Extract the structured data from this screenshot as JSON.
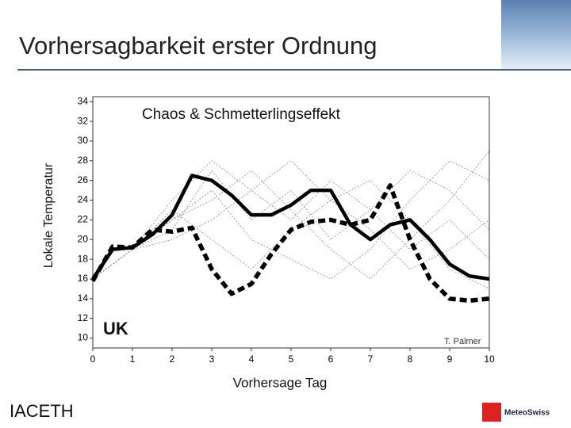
{
  "header": {
    "title": "Vorhersagbarkeit erster Ordnung"
  },
  "chart_data": {
    "type": "line",
    "title": "Chaos & Schmetterlingseffekt",
    "ylabel": "Lokale Temperatur",
    "xlabel": "Vorhersage Tag",
    "annotations": [
      "UK",
      "T. Palmer"
    ],
    "xlim": [
      0,
      10
    ],
    "xticks": [
      0,
      1,
      2,
      3,
      4,
      5,
      6,
      7,
      8,
      9,
      10
    ],
    "ylim": [
      9,
      34.5
    ],
    "yticks": [
      10,
      12,
      14,
      16,
      18,
      20,
      22,
      24,
      26,
      28,
      30,
      32,
      34
    ],
    "series": [
      {
        "color": "#888888",
        "style": "dotted",
        "x": [
          0,
          1,
          2,
          3,
          4,
          5,
          6,
          7,
          8,
          9,
          10
        ],
        "values": [
          16,
          19,
          24,
          28,
          25,
          22,
          26,
          23,
          27,
          25,
          21
        ]
      },
      {
        "color": "#888888",
        "style": "dotted",
        "x": [
          0,
          1,
          2,
          3,
          4,
          5,
          6,
          7,
          8,
          9,
          10
        ],
        "values": [
          16,
          19,
          22,
          25,
          20,
          18,
          16,
          19,
          24,
          28,
          26
        ]
      },
      {
        "color": "#888888",
        "style": "dotted",
        "x": [
          0,
          1,
          2,
          3,
          4,
          5,
          6,
          7,
          8,
          9,
          10
        ],
        "values": [
          16,
          19,
          21,
          27,
          22,
          25,
          20,
          23,
          19,
          22,
          18
        ]
      },
      {
        "color": "#888888",
        "style": "dotted",
        "x": [
          0,
          1,
          2,
          3,
          4,
          5,
          6,
          7,
          8,
          9,
          10
        ],
        "values": [
          16,
          19,
          23,
          20,
          17,
          21,
          24,
          26,
          22,
          17,
          15
        ]
      },
      {
        "color": "#888888",
        "style": "dotted",
        "x": [
          0,
          1,
          2,
          3,
          4,
          5,
          6,
          7,
          8,
          9,
          10
        ],
        "values": [
          16,
          19,
          22,
          24,
          27,
          23,
          19,
          16,
          20,
          24,
          29
        ]
      },
      {
        "color": "#888888",
        "style": "dotted",
        "x": [
          0,
          1,
          2,
          3,
          4,
          5,
          6,
          7,
          8,
          9,
          10
        ],
        "values": [
          16,
          19,
          20,
          22,
          25,
          28,
          24,
          21,
          17,
          19,
          22
        ]
      },
      {
        "color": "#000000",
        "style": "solid",
        "x": [
          0,
          0.5,
          1,
          1.5,
          2,
          2.5,
          3,
          3.5,
          4,
          4.5,
          5,
          5.5,
          6,
          6.5,
          7,
          7.5,
          8,
          8.5,
          9,
          9.5,
          10
        ],
        "values": [
          16,
          19,
          19.2,
          20.5,
          22.5,
          26.5,
          26,
          24.5,
          22.5,
          22.5,
          23.5,
          25,
          25,
          21.5,
          20,
          21.5,
          22,
          20,
          17.5,
          16.3,
          16
        ]
      },
      {
        "color": "#000000",
        "style": "dashed",
        "x": [
          0,
          0.5,
          1,
          1.5,
          2,
          2.5,
          3,
          3.5,
          4,
          4.5,
          5,
          5.5,
          6,
          6.5,
          7,
          7.5,
          8,
          8.5,
          9,
          9.5,
          10
        ],
        "values": [
          15.8,
          19.3,
          19.2,
          21,
          20.8,
          21.2,
          17,
          14.5,
          15.5,
          18.5,
          21,
          21.8,
          22,
          21.5,
          22,
          25.5,
          20,
          16,
          14,
          13.8,
          14
        ]
      }
    ]
  },
  "footer": {
    "left": "IACETH",
    "right": "MeteoSwiss"
  }
}
